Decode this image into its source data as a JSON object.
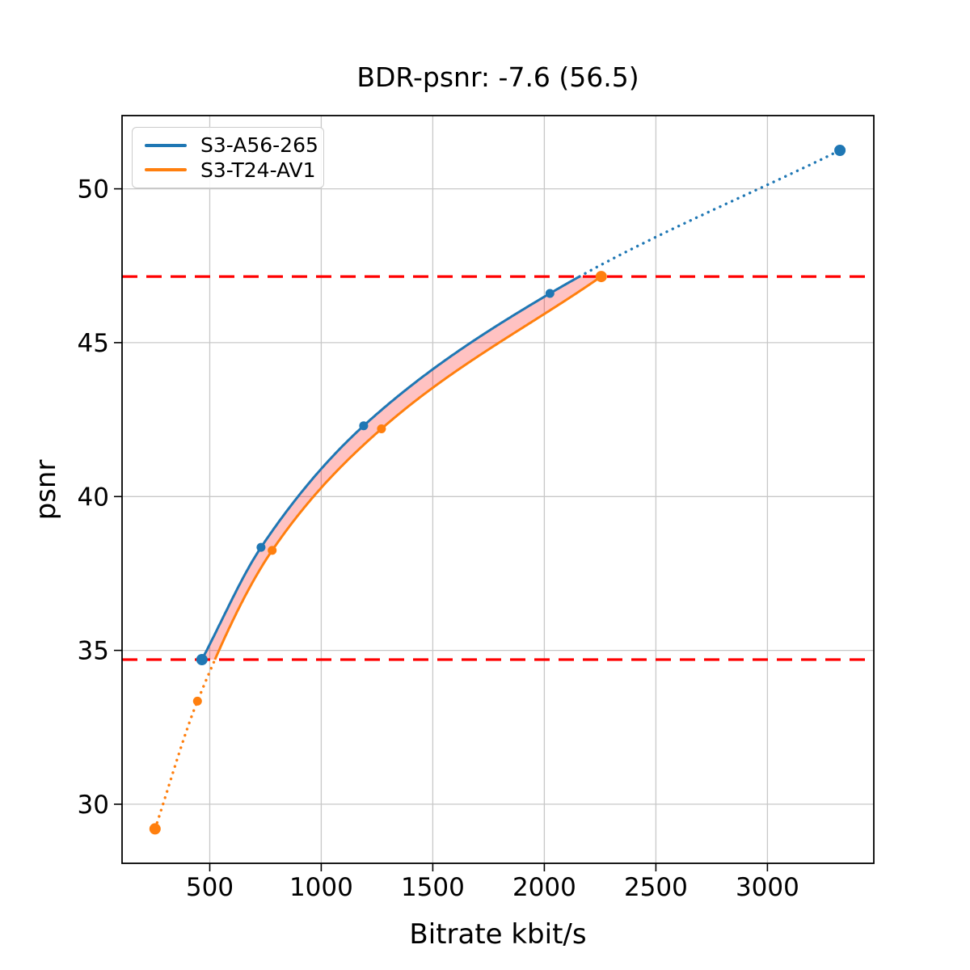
{
  "title": "BDR-psnr: -7.6 (56.5)",
  "xlabel": "Bitrate kbit/s",
  "ylabel": "psnr",
  "legend": {
    "position": "upper left",
    "items": [
      {
        "label": "S3-A56-265",
        "color": "#1f77b4"
      },
      {
        "label": "S3-T24-AV1",
        "color": "#ff7f0e"
      }
    ]
  },
  "chart_data": {
    "type": "line",
    "title": "BDR-psnr: -7.6 (56.5)",
    "xlabel": "Bitrate kbit/s",
    "ylabel": "psnr",
    "xlim": [
      107,
      3477
    ],
    "ylim": [
      28.08,
      52.38
    ],
    "x_ticks": [
      500,
      1000,
      1500,
      2000,
      2500,
      3000
    ],
    "y_ticks": [
      30,
      35,
      40,
      45,
      50
    ],
    "grid": true,
    "grid_color": "#c8c8c8",
    "legend_position": "upper left",
    "series": [
      {
        "name": "S3-A56-265",
        "color": "#1f77b4",
        "points": [
          [
            465,
            34.7
          ],
          [
            730,
            38.35
          ],
          [
            1190,
            42.3
          ],
          [
            2025,
            46.6
          ],
          [
            3325,
            51.25
          ]
        ],
        "note": "solid interpolated curve inside overlap region, dotted extrapolation above psnr 47.15"
      },
      {
        "name": "S3-T24-AV1",
        "color": "#ff7f0e",
        "points": [
          [
            255,
            29.2
          ],
          [
            445,
            33.35
          ],
          [
            780,
            38.25
          ],
          [
            1270,
            42.2
          ],
          [
            2255,
            47.15
          ]
        ],
        "note": "dotted below psnr 34.7, solid interpolated curve inside overlap region"
      }
    ],
    "overlap_region": {
      "psnr_min": 34.7,
      "psnr_max": 47.15,
      "line_color": "#ff0000",
      "line_style": "dashed",
      "fill_color": "rgba(255,0,0,0.24)"
    }
  }
}
